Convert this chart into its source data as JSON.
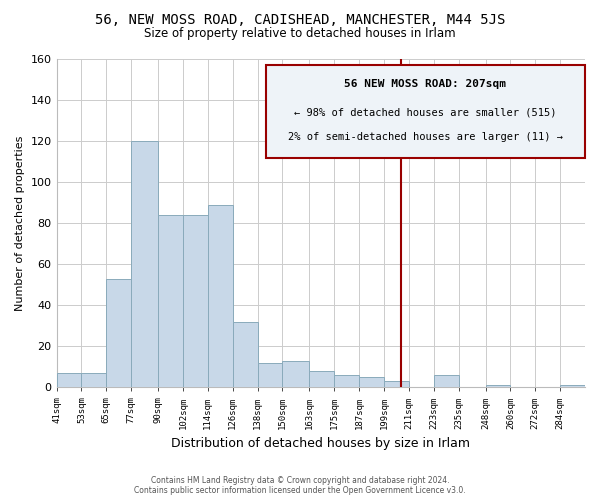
{
  "title": "56, NEW MOSS ROAD, CADISHEAD, MANCHESTER, M44 5JS",
  "subtitle": "Size of property relative to detached houses in Irlam",
  "xlabel": "Distribution of detached houses by size in Irlam",
  "ylabel": "Number of detached properties",
  "bin_labels": [
    "41sqm",
    "53sqm",
    "65sqm",
    "77sqm",
    "90sqm",
    "102sqm",
    "114sqm",
    "126sqm",
    "138sqm",
    "150sqm",
    "163sqm",
    "175sqm",
    "187sqm",
    "199sqm",
    "211sqm",
    "223sqm",
    "235sqm",
    "248sqm",
    "260sqm",
    "272sqm",
    "284sqm"
  ],
  "bar_heights": [
    7,
    7,
    53,
    120,
    84,
    84,
    89,
    32,
    12,
    13,
    8,
    6,
    5,
    3,
    0,
    6,
    0,
    1,
    0,
    0,
    1
  ],
  "bar_color": "#c8d8e8",
  "bar_edge_color": "#8aaabb",
  "grid_color": "#cccccc",
  "vline_x_idx": 14,
  "vline_color": "#990000",
  "annotation_title": "56 NEW MOSS ROAD: 207sqm",
  "annotation_line1": "← 98% of detached houses are smaller (515)",
  "annotation_line2": "2% of semi-detached houses are larger (11) →",
  "annotation_box_color": "#eef3f8",
  "annotation_box_edge": "#990000",
  "footer_line1": "Contains HM Land Registry data © Crown copyright and database right 2024.",
  "footer_line2": "Contains public sector information licensed under the Open Government Licence v3.0.",
  "ylim": [
    0,
    160
  ],
  "bin_edges_sqm": [
    41,
    53,
    65,
    77,
    90,
    102,
    114,
    126,
    138,
    150,
    163,
    175,
    187,
    199,
    211,
    223,
    235,
    248,
    260,
    272,
    284,
    296
  ]
}
